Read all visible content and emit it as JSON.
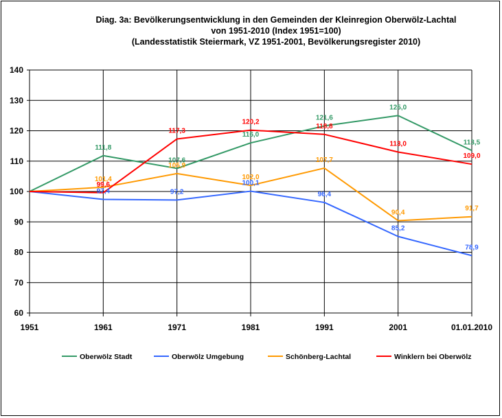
{
  "chart_data": {
    "type": "line",
    "title": [
      "Diag. 3a: Bevölkerungsentwicklung  in den Gemeinden  der Kleinregion Oberwölz-Lachtal",
      "von 1951-2010  (Index 1951=100)",
      "(Landesstatistik  Steiermark, VZ 1951-2001,  Bevölkerungsregister  2010)"
    ],
    "categories": [
      "1951",
      "1961",
      "1971",
      "1981",
      "1991",
      "2001",
      "01.01.2010"
    ],
    "ylim": [
      60,
      140
    ],
    "yticks": [
      60,
      70,
      80,
      90,
      100,
      110,
      120,
      130,
      140
    ],
    "grid": true,
    "legend": "bottom",
    "series": [
      {
        "name": "Oberwölz Stadt",
        "color": "#339966",
        "values": [
          100,
          111.8,
          107.6,
          116.0,
          121.6,
          125.0,
          113.5
        ],
        "labels": [
          "",
          "111,8",
          "107,6",
          "116,0",
          "121,6",
          "125,0",
          "113,5"
        ]
      },
      {
        "name": "Oberwölz Umgebung",
        "color": "#3366ff",
        "values": [
          100,
          97.4,
          97.2,
          100.1,
          96.4,
          85.2,
          78.9
        ],
        "labels": [
          "",
          "97,4",
          "97,2",
          "100,1",
          "96,4",
          "85,2",
          "78,9"
        ]
      },
      {
        "name": "Schönberg-Lachtal",
        "color": "#ff9900",
        "values": [
          100,
          101.4,
          105.9,
          102.0,
          107.7,
          90.4,
          91.7
        ],
        "labels": [
          "",
          "101,4",
          "105,9",
          "102,0",
          "107,7",
          "90,4",
          "91,7"
        ]
      },
      {
        "name": "Winklern bei Oberwölz",
        "color": "#ff0000",
        "values": [
          100,
          99.6,
          117.3,
          120.2,
          118.8,
          113.0,
          109.0
        ],
        "labels": [
          "",
          "99,6",
          "117,3",
          "120,2",
          "118,8",
          "113,0",
          "109,0"
        ]
      }
    ]
  }
}
